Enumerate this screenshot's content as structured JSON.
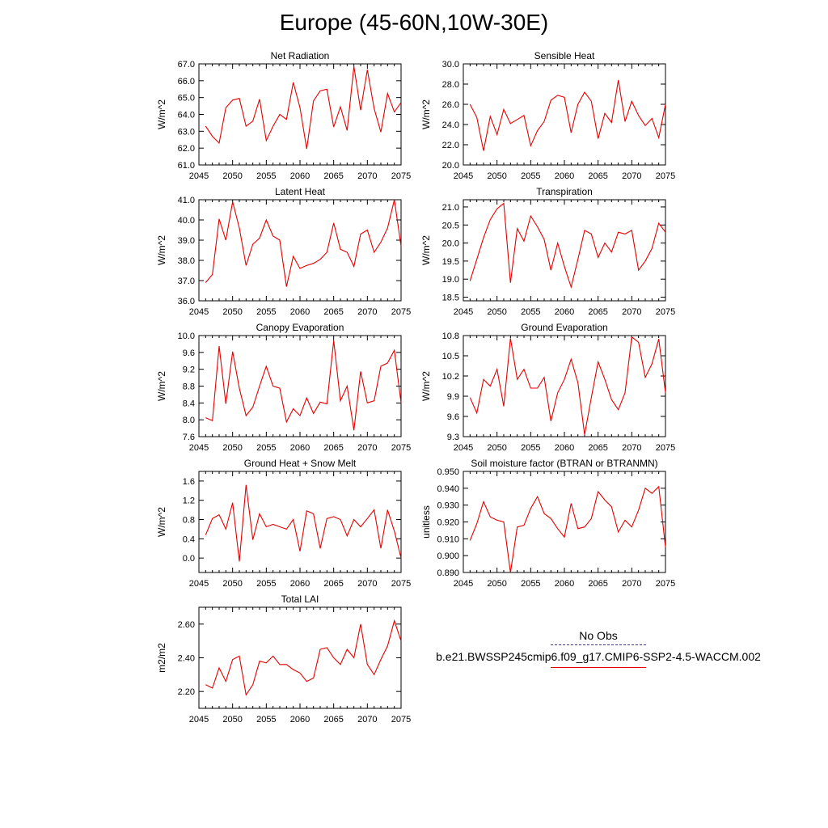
{
  "title": "Europe (45-60N,10W-30E)",
  "legend": {
    "obs_label": "No Obs",
    "model_label": "b.e21.BWSSP245cmip6.f09_g17.CMIP6-SSP2-4.5-WACCM.002",
    "obs_color": "#3a3a8c",
    "model_color": "#e60000"
  },
  "chart_data": [
    {
      "type": "line",
      "title": "Net Radiation",
      "ylabel": "W/m^2",
      "xlim": [
        2045,
        2075
      ],
      "ylim": [
        61.0,
        67.0
      ],
      "x_ticks": [
        2045,
        2050,
        2055,
        2060,
        2065,
        2070,
        2075
      ],
      "y_ticks": [
        "61.0",
        "62.0",
        "63.0",
        "64.0",
        "65.0",
        "66.0",
        "67.0"
      ],
      "x": [
        2046,
        2047,
        2048,
        2049,
        2050,
        2051,
        2052,
        2053,
        2054,
        2055,
        2056,
        2057,
        2058,
        2059,
        2060,
        2061,
        2062,
        2063,
        2064,
        2065,
        2066,
        2067,
        2068,
        2069,
        2070,
        2071,
        2072,
        2073,
        2074,
        2075
      ],
      "values": [
        63.3,
        62.7,
        62.3,
        64.4,
        64.85,
        64.95,
        63.3,
        63.6,
        64.9,
        62.45,
        63.3,
        64.0,
        63.7,
        65.9,
        64.4,
        61.95,
        64.8,
        65.4,
        65.5,
        63.25,
        64.45,
        63.05,
        66.85,
        64.25,
        66.65,
        64.35,
        62.95,
        65.25,
        64.15,
        64.7
      ],
      "color": "#e60000"
    },
    {
      "type": "line",
      "title": "Sensible Heat",
      "ylabel": "W/m^2",
      "xlim": [
        2045,
        2075
      ],
      "ylim": [
        20.0,
        30.0
      ],
      "x_ticks": [
        2045,
        2050,
        2055,
        2060,
        2065,
        2070,
        2075
      ],
      "y_ticks": [
        "20.0",
        "22.0",
        "24.0",
        "26.0",
        "28.0",
        "30.0"
      ],
      "x": [
        2046,
        2047,
        2048,
        2049,
        2050,
        2051,
        2052,
        2053,
        2054,
        2055,
        2056,
        2057,
        2058,
        2059,
        2060,
        2061,
        2062,
        2063,
        2064,
        2065,
        2066,
        2067,
        2068,
        2069,
        2070,
        2071,
        2072,
        2073,
        2074,
        2075
      ],
      "values": [
        26.0,
        24.7,
        21.4,
        24.8,
        23.0,
        25.5,
        24.1,
        24.5,
        24.9,
        21.9,
        23.4,
        24.3,
        26.4,
        26.9,
        26.7,
        23.2,
        26.0,
        27.2,
        26.3,
        22.6,
        25.1,
        24.2,
        28.4,
        24.3,
        26.3,
        24.9,
        23.9,
        24.6,
        22.7,
        26.0
      ],
      "color": "#e60000"
    },
    {
      "type": "line",
      "title": "Latent Heat",
      "ylabel": "W/m^2",
      "xlim": [
        2045,
        2075
      ],
      "ylim": [
        36.0,
        41.0
      ],
      "x_ticks": [
        2045,
        2050,
        2055,
        2060,
        2065,
        2070,
        2075
      ],
      "y_ticks": [
        "36.0",
        "37.0",
        "38.0",
        "39.0",
        "40.0",
        "41.0"
      ],
      "x": [
        2046,
        2047,
        2048,
        2049,
        2050,
        2051,
        2052,
        2053,
        2054,
        2055,
        2056,
        2057,
        2058,
        2059,
        2060,
        2061,
        2062,
        2063,
        2064,
        2065,
        2066,
        2067,
        2068,
        2069,
        2070,
        2071,
        2072,
        2073,
        2074,
        2075
      ],
      "values": [
        36.9,
        37.3,
        40.05,
        39.0,
        40.9,
        39.6,
        37.75,
        38.8,
        39.1,
        40.0,
        39.2,
        39.0,
        36.7,
        38.2,
        37.6,
        37.75,
        37.85,
        38.05,
        38.4,
        39.85,
        38.55,
        38.4,
        37.7,
        39.3,
        39.5,
        38.4,
        38.9,
        39.6,
        41.0,
        38.7
      ],
      "color": "#e60000"
    },
    {
      "type": "line",
      "title": "Transpiration",
      "ylabel": "W/m^2",
      "xlim": [
        2045,
        2075
      ],
      "ylim": [
        18.4,
        21.2
      ],
      "x_ticks": [
        2045,
        2050,
        2055,
        2060,
        2065,
        2070,
        2075
      ],
      "y_ticks": [
        "18.5",
        "19.0",
        "19.5",
        "20.0",
        "20.5",
        "21.0"
      ],
      "x": [
        2046,
        2047,
        2048,
        2049,
        2050,
        2051,
        2052,
        2053,
        2054,
        2055,
        2056,
        2057,
        2058,
        2059,
        2060,
        2061,
        2062,
        2063,
        2064,
        2065,
        2066,
        2067,
        2068,
        2069,
        2070,
        2071,
        2072,
        2073,
        2074,
        2075
      ],
      "values": [
        18.95,
        19.55,
        20.15,
        20.65,
        20.95,
        21.1,
        18.9,
        20.4,
        20.05,
        20.75,
        20.45,
        20.1,
        19.25,
        20.0,
        19.35,
        18.78,
        19.55,
        20.35,
        20.25,
        19.6,
        20.0,
        19.75,
        20.3,
        20.25,
        20.35,
        19.25,
        19.5,
        19.85,
        20.55,
        20.3
      ],
      "color": "#e60000"
    },
    {
      "type": "line",
      "title": "Canopy Evaporation",
      "ylabel": "W/m^2",
      "xlim": [
        2045,
        2075
      ],
      "ylim": [
        7.6,
        10.0
      ],
      "x_ticks": [
        2045,
        2050,
        2055,
        2060,
        2065,
        2070,
        2075
      ],
      "y_ticks": [
        "7.6",
        "8.0",
        "8.4",
        "8.8",
        "9.2",
        "9.6",
        "10.0"
      ],
      "x": [
        2046,
        2047,
        2048,
        2049,
        2050,
        2051,
        2052,
        2053,
        2054,
        2055,
        2056,
        2057,
        2058,
        2059,
        2060,
        2061,
        2062,
        2063,
        2064,
        2065,
        2066,
        2067,
        2068,
        2069,
        2070,
        2071,
        2072,
        2073,
        2074,
        2075
      ],
      "values": [
        8.05,
        7.98,
        9.75,
        8.38,
        9.62,
        8.75,
        8.1,
        8.3,
        8.8,
        9.27,
        8.8,
        8.75,
        7.95,
        8.26,
        8.1,
        8.52,
        8.15,
        8.42,
        8.38,
        9.88,
        8.45,
        8.8,
        7.75,
        9.15,
        8.4,
        8.45,
        9.27,
        9.35,
        9.65,
        8.4
      ],
      "color": "#e60000"
    },
    {
      "type": "line",
      "title": "Ground Evaporation",
      "ylabel": "W/m^2",
      "xlim": [
        2045,
        2075
      ],
      "ylim": [
        9.3,
        10.8
      ],
      "x_ticks": [
        2045,
        2050,
        2055,
        2060,
        2065,
        2070,
        2075
      ],
      "y_ticks": [
        "9.3",
        "9.6",
        "9.9",
        "10.2",
        "10.5",
        "10.8"
      ],
      "x": [
        2046,
        2047,
        2048,
        2049,
        2050,
        2051,
        2052,
        2053,
        2054,
        2055,
        2056,
        2057,
        2058,
        2059,
        2060,
        2061,
        2062,
        2063,
        2064,
        2065,
        2066,
        2067,
        2068,
        2069,
        2070,
        2071,
        2072,
        2073,
        2074,
        2075
      ],
      "values": [
        9.88,
        9.65,
        10.15,
        10.05,
        10.3,
        9.75,
        10.76,
        10.15,
        10.3,
        10.02,
        10.02,
        10.18,
        9.53,
        9.95,
        10.15,
        10.45,
        10.1,
        9.33,
        9.88,
        10.41,
        10.15,
        9.85,
        9.7,
        9.95,
        10.78,
        10.7,
        10.18,
        10.38,
        10.75,
        9.95
      ],
      "color": "#e60000"
    },
    {
      "type": "line",
      "title": "Ground Heat + Snow Melt",
      "ylabel": "W/m^2",
      "xlim": [
        2045,
        2075
      ],
      "ylim": [
        -0.3,
        1.8
      ],
      "x_ticks": [
        2045,
        2050,
        2055,
        2060,
        2065,
        2070,
        2075
      ],
      "y_ticks": [
        "0.0",
        "0.4",
        "0.8",
        "1.2",
        "1.6"
      ],
      "x": [
        2046,
        2047,
        2048,
        2049,
        2050,
        2051,
        2052,
        2053,
        2054,
        2055,
        2056,
        2057,
        2058,
        2059,
        2060,
        2061,
        2062,
        2063,
        2064,
        2065,
        2066,
        2067,
        2068,
        2069,
        2070,
        2071,
        2072,
        2073,
        2074,
        2075
      ],
      "values": [
        0.48,
        0.82,
        0.9,
        0.6,
        1.15,
        -0.07,
        1.52,
        0.38,
        0.92,
        0.65,
        0.7,
        0.65,
        0.6,
        0.8,
        0.14,
        0.98,
        0.92,
        0.2,
        0.82,
        0.86,
        0.8,
        0.46,
        0.8,
        0.65,
        0.82,
        1.0,
        0.2,
        1.0,
        0.56,
        0.0
      ],
      "color": "#e60000"
    },
    {
      "type": "line",
      "title": "Soil moisture factor (BTRAN or BTRANMN)",
      "ylabel": "unitless",
      "xlim": [
        2045,
        2075
      ],
      "ylim": [
        0.89,
        0.95
      ],
      "x_ticks": [
        2045,
        2050,
        2055,
        2060,
        2065,
        2070,
        2075
      ],
      "y_ticks": [
        "0.890",
        "0.900",
        "0.910",
        "0.920",
        "0.930",
        "0.940",
        "0.950"
      ],
      "x": [
        2046,
        2047,
        2048,
        2049,
        2050,
        2051,
        2052,
        2053,
        2054,
        2055,
        2056,
        2057,
        2058,
        2059,
        2060,
        2061,
        2062,
        2063,
        2064,
        2065,
        2066,
        2067,
        2068,
        2069,
        2070,
        2071,
        2072,
        2073,
        2074,
        2075
      ],
      "values": [
        0.909,
        0.919,
        0.932,
        0.923,
        0.921,
        0.92,
        0.89,
        0.917,
        0.918,
        0.928,
        0.935,
        0.925,
        0.922,
        0.916,
        0.911,
        0.931,
        0.916,
        0.917,
        0.922,
        0.938,
        0.933,
        0.929,
        0.914,
        0.921,
        0.917,
        0.927,
        0.94,
        0.937,
        0.941,
        0.905
      ],
      "color": "#e60000"
    },
    {
      "type": "line",
      "title": "Total LAI",
      "ylabel": "m2/m2",
      "xlim": [
        2045,
        2075
      ],
      "ylim": [
        2.1,
        2.7
      ],
      "x_ticks": [
        2045,
        2050,
        2055,
        2060,
        2065,
        2070,
        2075
      ],
      "y_ticks": [
        "2.20",
        "2.40",
        "2.60"
      ],
      "x": [
        2046,
        2047,
        2048,
        2049,
        2050,
        2051,
        2052,
        2053,
        2054,
        2055,
        2056,
        2057,
        2058,
        2059,
        2060,
        2061,
        2062,
        2063,
        2064,
        2065,
        2066,
        2067,
        2068,
        2069,
        2070,
        2071,
        2072,
        2073,
        2074,
        2075
      ],
      "values": [
        2.24,
        2.22,
        2.34,
        2.26,
        2.39,
        2.41,
        2.18,
        2.24,
        2.38,
        2.37,
        2.41,
        2.36,
        2.36,
        2.33,
        2.31,
        2.26,
        2.28,
        2.45,
        2.46,
        2.4,
        2.36,
        2.45,
        2.4,
        2.6,
        2.36,
        2.3,
        2.39,
        2.47,
        2.62,
        2.5
      ],
      "color": "#e60000"
    }
  ]
}
